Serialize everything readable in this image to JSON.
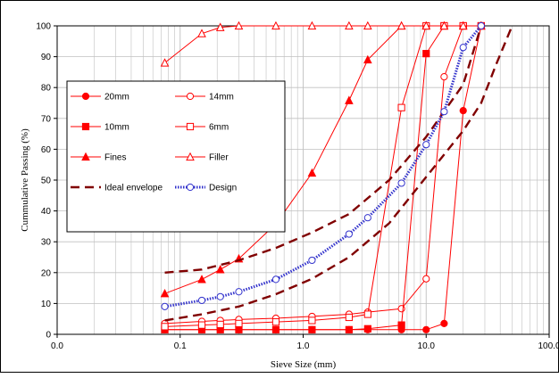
{
  "chart_data": {
    "type": "line",
    "xlabel": "Sieve Size (mm)",
    "ylabel": "Cummulative Passing (%)",
    "xscale": "log",
    "xlim": [
      0.01,
      100
    ],
    "ylim": [
      0,
      100
    ],
    "x_ticks": [
      0.01,
      0.1,
      1,
      10,
      100
    ],
    "x_tick_labels": [
      "0.0",
      "0.1",
      "1.0",
      "10.0",
      "100.0"
    ],
    "y_ticks": [
      0,
      10,
      20,
      30,
      40,
      50,
      60,
      70,
      80,
      90,
      100
    ],
    "grid": "on",
    "legend_position": "top-left",
    "colors": {
      "series_red": "#ff0000",
      "envelope": "#800000",
      "design": "#3333cc"
    },
    "series": [
      {
        "name": "20mm",
        "marker": "filled-circle",
        "color": "#ff0000",
        "x": [
          0.075,
          0.15,
          0.212,
          0.3,
          0.6,
          1.18,
          2.36,
          3.35,
          6.3,
          10,
          14,
          20,
          28
        ],
        "y": [
          1.5,
          1.5,
          1.5,
          1.5,
          1.5,
          1.5,
          1.5,
          1.5,
          1.5,
          1.5,
          3.5,
          72.5,
          100
        ]
      },
      {
        "name": "14mm",
        "marker": "open-circle",
        "color": "#ff0000",
        "x": [
          0.075,
          0.15,
          0.212,
          0.3,
          0.6,
          1.18,
          2.36,
          3.35,
          6.3,
          10,
          14,
          20,
          28
        ],
        "y": [
          3.5,
          4.2,
          4.5,
          4.8,
          5.2,
          5.8,
          6.5,
          7.2,
          8.3,
          18,
          83.5,
          100,
          100
        ]
      },
      {
        "name": "10mm",
        "marker": "filled-square",
        "color": "#ff0000",
        "x": [
          0.075,
          0.15,
          0.212,
          0.3,
          0.6,
          1.18,
          2.36,
          3.35,
          6.3,
          10,
          14,
          20,
          28
        ],
        "y": [
          1.5,
          1.5,
          1.5,
          1.5,
          1.5,
          1.5,
          1.5,
          1.8,
          3,
          91,
          100,
          100,
          100
        ]
      },
      {
        "name": "6mm",
        "marker": "open-square",
        "color": "#ff0000",
        "x": [
          0.075,
          0.15,
          0.212,
          0.3,
          0.6,
          1.18,
          2.36,
          3.35,
          6.3,
          10,
          14,
          20,
          28
        ],
        "y": [
          2.5,
          3,
          3.2,
          3.5,
          4,
          4.5,
          5.5,
          6.5,
          73.5,
          100,
          100,
          100,
          100
        ]
      },
      {
        "name": "Fines",
        "marker": "filled-triangle",
        "color": "#ff0000",
        "x": [
          0.075,
          0.15,
          0.212,
          0.3,
          0.6,
          1.18,
          2.36,
          3.35,
          6.3,
          10,
          14,
          20,
          28
        ],
        "y": [
          13.2,
          17.8,
          21,
          24.5,
          35.8,
          52.3,
          75.8,
          89,
          100,
          100,
          100,
          100,
          100
        ]
      },
      {
        "name": "Filler",
        "marker": "open-triangle",
        "color": "#ff0000",
        "x": [
          0.075,
          0.15,
          0.212,
          0.3,
          0.6,
          1.18,
          2.36,
          3.35,
          6.3,
          10,
          14,
          20,
          28
        ],
        "y": [
          88,
          97.5,
          99.5,
          100,
          100,
          100,
          100,
          100,
          100,
          100,
          100,
          100,
          100
        ]
      },
      {
        "name": "Ideal envelope",
        "style": "dashed",
        "color": "#800000",
        "x": [
          0.075,
          0.15,
          0.3,
          0.6,
          1.18,
          2.36,
          5,
          10,
          20,
          28
        ],
        "y": [
          20,
          21,
          24,
          28,
          33,
          39,
          50,
          64,
          81,
          100
        ]
      },
      {
        "name": "",
        "style": "dashed",
        "color": "#800000",
        "x": [
          0.075,
          0.15,
          0.3,
          0.6,
          1.18,
          2.36,
          5,
          10,
          20,
          28,
          37.5,
          50
        ],
        "y": [
          4.5,
          6.5,
          9,
          13,
          18,
          25,
          36,
          51,
          66,
          75,
          88,
          100
        ]
      },
      {
        "name": "Design",
        "marker": "open-circle",
        "style": "dotted-double",
        "color": "#3333cc",
        "x": [
          0.075,
          0.15,
          0.212,
          0.3,
          0.6,
          1.18,
          2.36,
          3.35,
          6.3,
          10,
          14,
          20,
          28
        ],
        "y": [
          9,
          11,
          12.2,
          13.8,
          17.8,
          24,
          32.5,
          37.8,
          49,
          61.5,
          72.2,
          93,
          100
        ]
      }
    ]
  }
}
